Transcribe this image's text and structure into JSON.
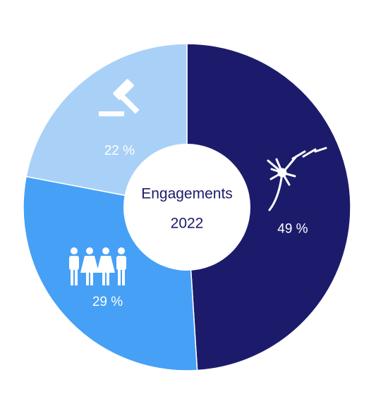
{
  "chart_data": {
    "type": "donut",
    "title": "Engagements",
    "subtitle": "2022",
    "categories": [
      null,
      null,
      null
    ],
    "values": [
      49,
      29,
      22
    ],
    "value_labels": [
      "49 %",
      "29 %",
      "22 %"
    ],
    "colors": [
      "#1c1b6b",
      "#46a0f6",
      "#a9d1f8"
    ]
  }
}
